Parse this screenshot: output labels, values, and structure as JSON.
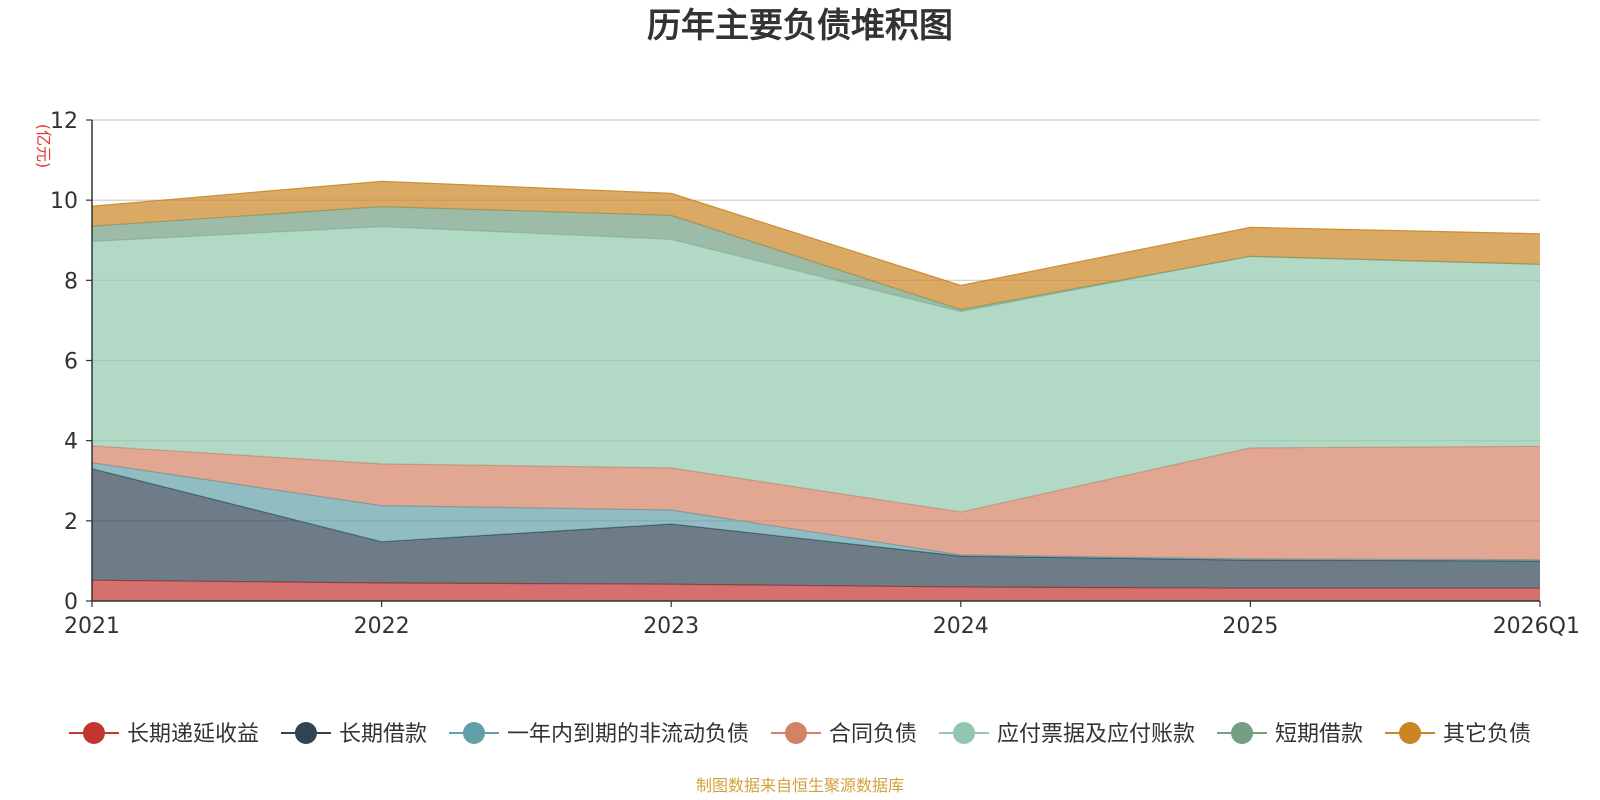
{
  "chart_data": {
    "type": "area",
    "stacked": true,
    "title": "历年主要负债堆积图",
    "unit_label": "(亿元)",
    "source_note": "制图数据来自恒生聚源数据库",
    "categories": [
      "2021",
      "2022",
      "2023",
      "2024",
      "2025",
      "2026Q1"
    ],
    "yticks": [
      "0",
      "2",
      "4",
      "6",
      "8",
      "10",
      "12"
    ],
    "ylim": [
      0,
      12
    ],
    "grid": true,
    "legend_position": "bottom",
    "series": [
      {
        "name": "长期递延收益",
        "color": "#c23531",
        "values": [
          0.52,
          0.45,
          0.42,
          0.35,
          0.32,
          0.32
        ]
      },
      {
        "name": "长期借款",
        "color": "#2f4554",
        "values": [
          2.78,
          1.03,
          1.5,
          0.77,
          0.7,
          0.68
        ]
      },
      {
        "name": "一年内到期的非流动负债",
        "color": "#61a0a8",
        "values": [
          0.15,
          0.9,
          0.35,
          0.03,
          0.03,
          0.03
        ]
      },
      {
        "name": "合同负债",
        "color": "#d48265",
        "values": [
          0.42,
          1.04,
          1.05,
          1.07,
          2.77,
          2.83
        ]
      },
      {
        "name": "应付票据及应付账款",
        "color": "#91c7ae",
        "values": [
          5.1,
          5.92,
          5.7,
          5.0,
          4.78,
          4.54
        ]
      },
      {
        "name": "短期借款",
        "color": "#749f83",
        "values": [
          0.38,
          0.5,
          0.6,
          0.05,
          0.0,
          0.0
        ]
      },
      {
        "name": "其它负债",
        "color": "#ca8622",
        "values": [
          0.5,
          0.63,
          0.55,
          0.6,
          0.72,
          0.76
        ]
      }
    ]
  }
}
